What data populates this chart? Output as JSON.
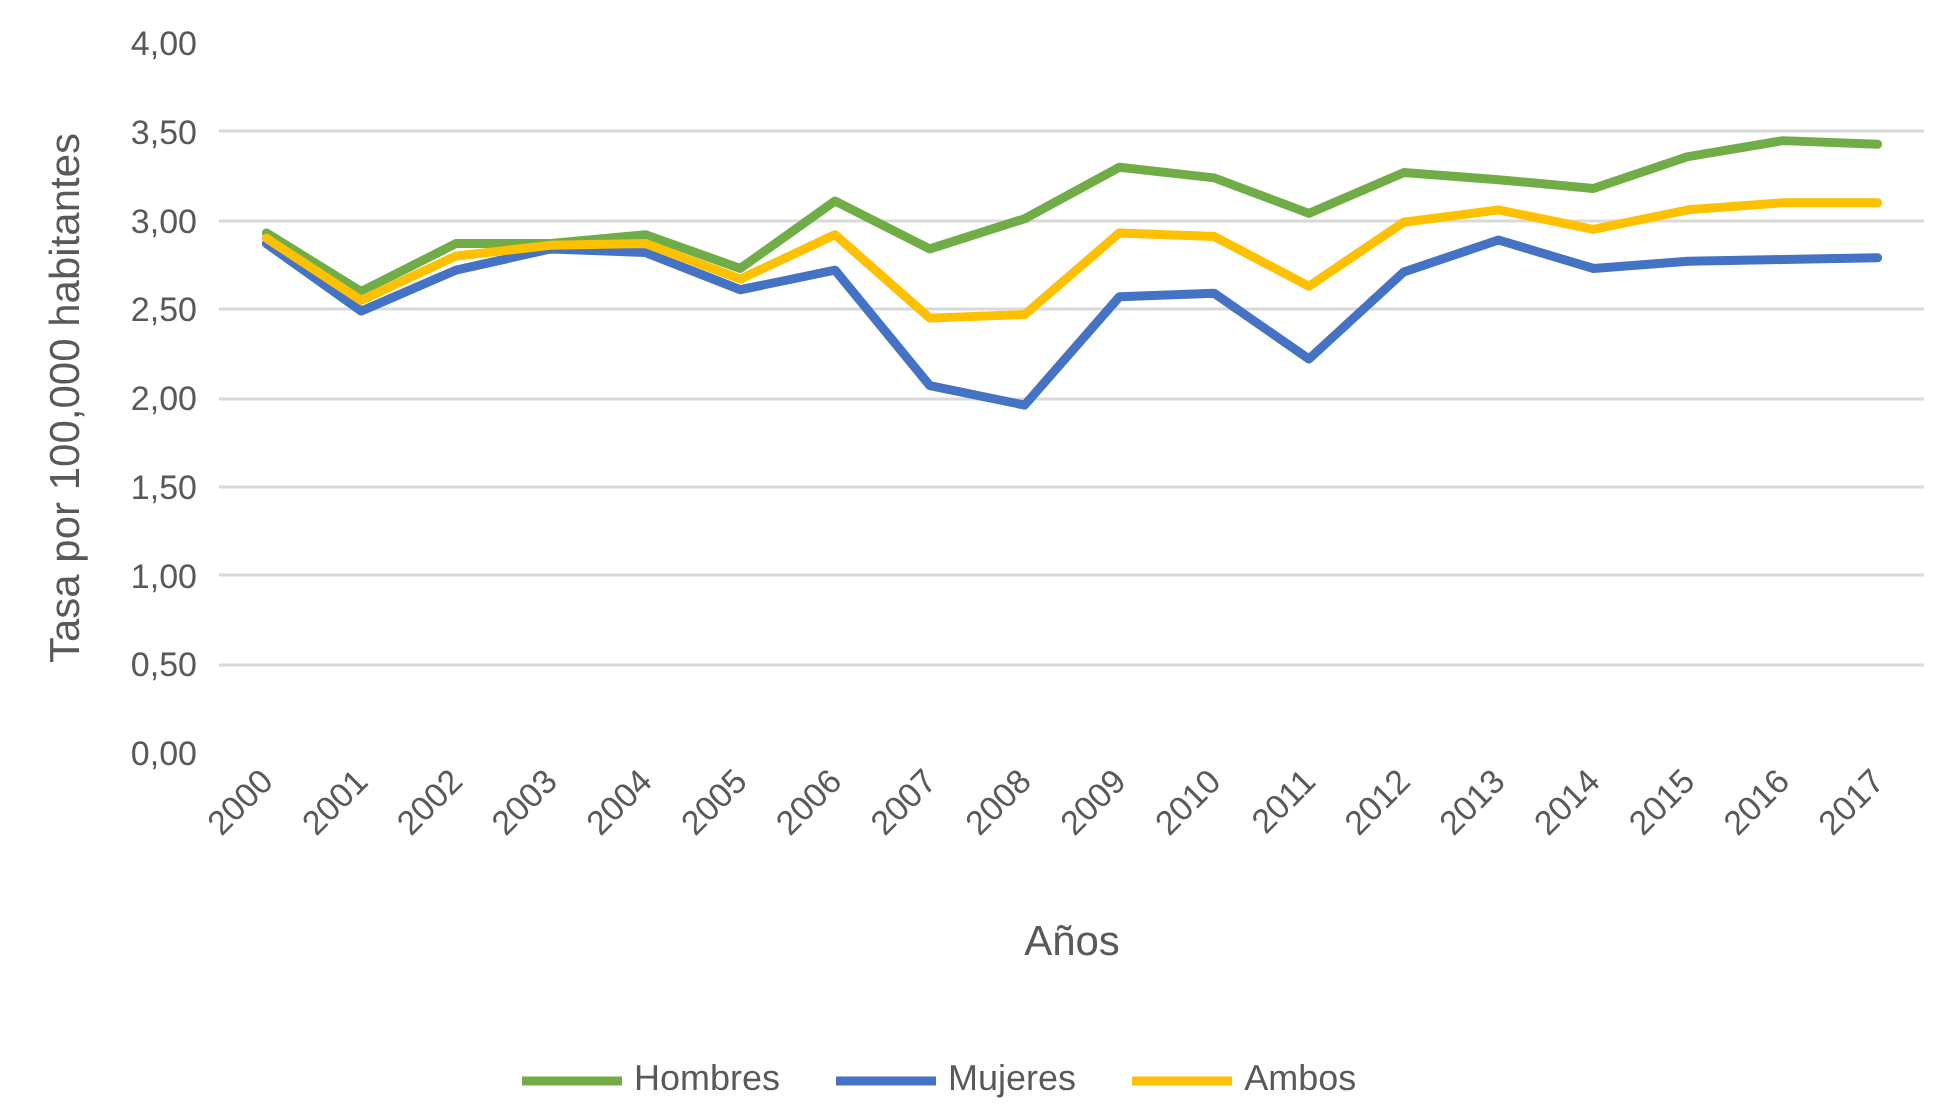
{
  "chart_data": {
    "type": "line",
    "xlabel": "Años",
    "ylabel": "Tasa por 100,000 habitantes",
    "categories": [
      "2000",
      "2001",
      "2002",
      "2003",
      "2004",
      "2005",
      "2006",
      "2007",
      "2008",
      "2009",
      "2010",
      "2011",
      "2012",
      "2013",
      "2014",
      "2015",
      "2016",
      "2017"
    ],
    "series": [
      {
        "name": "Hombres",
        "color": "#70ad47",
        "values": [
          2.93,
          2.6,
          2.87,
          2.87,
          2.92,
          2.73,
          3.11,
          2.84,
          3.01,
          3.3,
          3.24,
          3.04,
          3.27,
          3.23,
          3.18,
          3.36,
          3.45,
          3.43
        ]
      },
      {
        "name": "Mujeres",
        "color": "#4472c4",
        "values": [
          2.87,
          2.49,
          2.72,
          2.84,
          2.82,
          2.61,
          2.72,
          2.07,
          1.96,
          2.57,
          2.59,
          2.22,
          2.71,
          2.89,
          2.73,
          2.77,
          2.78,
          2.79
        ]
      },
      {
        "name": "Ambos",
        "color": "#ffc000",
        "values": [
          2.9,
          2.55,
          2.8,
          2.86,
          2.87,
          2.67,
          2.92,
          2.45,
          2.47,
          2.93,
          2.91,
          2.63,
          2.99,
          3.06,
          2.95,
          3.06,
          3.1,
          3.1
        ]
      }
    ],
    "ylim": [
      0,
      4
    ],
    "yticks": [
      {
        "value": 0,
        "label": "0,00"
      },
      {
        "value": 0.5,
        "label": "0,50"
      },
      {
        "value": 1,
        "label": "1,00"
      },
      {
        "value": 1.5,
        "label": "1,50"
      },
      {
        "value": 2,
        "label": "2,00"
      },
      {
        "value": 2.5,
        "label": "2,50"
      },
      {
        "value": 3,
        "label": "3,00"
      },
      {
        "value": 3.5,
        "label": "3,50"
      },
      {
        "value": 4,
        "label": "4,00"
      }
    ],
    "grid": "y",
    "legend": "bottom"
  }
}
